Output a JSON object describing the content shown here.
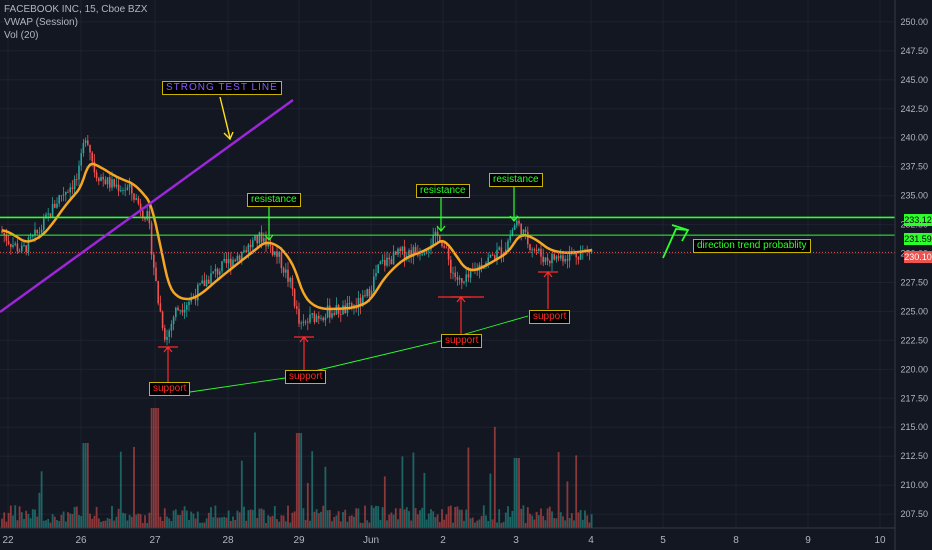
{
  "legend": {
    "symbol": "FACEBOOK INC, 15, Cboe BZX",
    "indicator1": "VWAP (Session)",
    "indicator2": "Vol (20)"
  },
  "chart_data": {
    "type": "candlestick",
    "xlabels": [
      "22",
      "26",
      "27",
      "28",
      "29",
      "Jun",
      "2",
      "3",
      "4",
      "5",
      "8",
      "9",
      "10"
    ],
    "yticks": [
      "250.00",
      "247.50",
      "245.00",
      "242.50",
      "240.00",
      "237.50",
      "235.00",
      "232.50",
      "230.00",
      "227.50",
      "225.00",
      "222.50",
      "220.00",
      "217.50",
      "215.00",
      "212.50",
      "210.00",
      "207.50"
    ],
    "ylim": [
      206.3,
      251.2
    ],
    "price_tags": [
      {
        "value": "233.12",
        "price": 233.12,
        "color": "#2dff2d"
      },
      {
        "value": "231.59",
        "price": 231.59,
        "color": "#2dff2d"
      },
      {
        "value": "230.10",
        "price": 230.1,
        "color": "#ef5350"
      }
    ],
    "key_closes": [
      {
        "x_label": "22",
        "price": 231.0
      },
      {
        "x_label": "26",
        "price": 240.5
      },
      {
        "x_label": "27",
        "price": 223.0
      },
      {
        "x_label": "28",
        "price": 230.7
      },
      {
        "x_label": "29",
        "price": 223.8
      },
      {
        "x_label": "Jun",
        "price": 227.8
      },
      {
        "x_label": "2",
        "price": 230.9
      },
      {
        "x_label": "3",
        "price": 230.2
      },
      {
        "x_label": "4",
        "price": 230.1
      }
    ],
    "annotations": [
      {
        "text": "STRONG TEST LINE",
        "style": "purple"
      },
      {
        "text": "resistance",
        "style": "green"
      },
      {
        "text": "resistance",
        "style": "green"
      },
      {
        "text": "resistance",
        "style": "green"
      },
      {
        "text": "direction trend probablity",
        "style": "green"
      },
      {
        "text": "support",
        "style": "red"
      },
      {
        "text": "support",
        "style": "red"
      },
      {
        "text": "support",
        "style": "red"
      },
      {
        "text": "support",
        "style": "red"
      }
    ],
    "colors": {
      "background": "#131722",
      "up": "#26a69a",
      "down": "#ef5350",
      "vwap": "#f5a623",
      "trendline": "#9c27d8",
      "levels": "#2dff2d"
    }
  }
}
